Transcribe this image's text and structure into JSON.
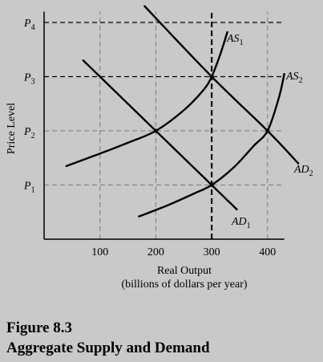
{
  "figure": {
    "number": "Figure 8.3",
    "title": "Aggregate Supply and Demand"
  },
  "chart_data": {
    "type": "line",
    "title": "",
    "xlabel": "Real Output",
    "xlabel_sub": "(billions of dollars per year)",
    "ylabel": "Price Level",
    "x_ticks": [
      100,
      200,
      300,
      400
    ],
    "y_ticks": [
      {
        "main": "P",
        "sub": "1",
        "value": 1
      },
      {
        "main": "P",
        "sub": "2",
        "value": 2
      },
      {
        "main": "P",
        "sub": "3",
        "value": 3
      },
      {
        "main": "P",
        "sub": "4",
        "value": 4
      }
    ],
    "xlim": [
      0,
      430
    ],
    "ylim": [
      0,
      4.2
    ],
    "grid": "dashed reference lines at tick values",
    "series": [
      {
        "main": "AS",
        "sub": "1",
        "curve": "rising",
        "points": [
          [
            40,
            1.35
          ],
          [
            100,
            1.58
          ],
          [
            150,
            1.78
          ],
          [
            200,
            2.0
          ],
          [
            250,
            2.38
          ],
          [
            285,
            2.75
          ],
          [
            300,
            3.0
          ],
          [
            315,
            3.4
          ],
          [
            328,
            3.82
          ]
        ]
      },
      {
        "main": "AS",
        "sub": "2",
        "curve": "rising",
        "points": [
          [
            170,
            0.42
          ],
          [
            220,
            0.62
          ],
          [
            270,
            0.85
          ],
          [
            300,
            1.0
          ],
          [
            340,
            1.33
          ],
          [
            375,
            1.72
          ],
          [
            400,
            2.0
          ],
          [
            420,
            2.6
          ],
          [
            430,
            3.05
          ]
        ]
      },
      {
        "main": "AD",
        "sub": "1",
        "curve": "falling",
        "points": [
          [
            70,
            3.3
          ],
          [
            200,
            2.0
          ],
          [
            300,
            1.0
          ],
          [
            345,
            0.55
          ]
        ]
      },
      {
        "main": "AD",
        "sub": "2",
        "curve": "falling",
        "points": [
          [
            180,
            4.3
          ],
          [
            300,
            3.0
          ],
          [
            400,
            2.0
          ],
          [
            455,
            1.4
          ]
        ]
      }
    ],
    "equilibria": [
      {
        "x": 200,
        "y": 2
      },
      {
        "x": 300,
        "y": 3
      },
      {
        "x": 300,
        "y": 1
      },
      {
        "x": 400,
        "y": 2
      }
    ],
    "emphasized_vline": 300,
    "colors": {
      "background": "#c9c9c9",
      "ink": "#000000",
      "grid": "#7a7a7a"
    }
  }
}
